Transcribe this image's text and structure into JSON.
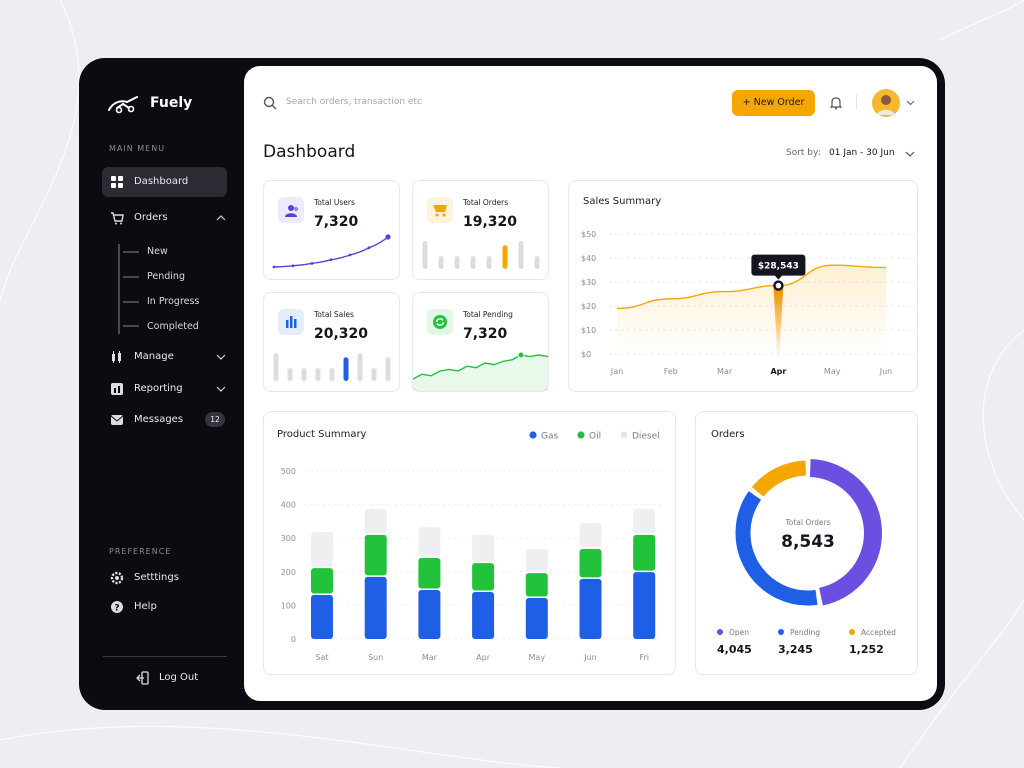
{
  "sidebar": {
    "brand": "Fuely",
    "main_menu": "MAIN MENU",
    "menu": [
      "Dashboard",
      "Orders",
      "Manage",
      "Reporting",
      "Messages"
    ],
    "orders_submenu": [
      "New",
      "Pending",
      "In Progress",
      "Completed"
    ],
    "messages_badge": 12,
    "preference": "PREFERENCE",
    "preference_menu": [
      "Setttings",
      "Help"
    ],
    "logout": "Log Out"
  },
  "header": {
    "search_placeholder": "Search orders, transaction etc",
    "new_order_button": "+ New Order"
  },
  "page": {
    "title": "Dashboard",
    "sort_label": "Sort by:",
    "sort_value": "01 Jan - 30 Jun"
  },
  "stat_cards": [
    {
      "label": "Total Users",
      "value": "7,320",
      "icon_color": "#5b3fd6",
      "icon_bg": "#ecebfb",
      "chart": {
        "type": "line",
        "color": "#5b3fd6",
        "values": [
          2,
          3,
          5,
          8,
          12,
          18,
          27
        ]
      }
    },
    {
      "label": "Total Orders",
      "value": "19,320",
      "icon_color": "#f5a700",
      "icon_bg": "#fdf3dd",
      "chart": {
        "type": "bar",
        "color": "#f5a700",
        "base_color": "#dcdde2",
        "highlight": 5,
        "values": [
          26,
          12,
          12,
          12,
          12,
          22,
          26,
          12
        ]
      }
    },
    {
      "label": "Total Sales",
      "value": "20,320",
      "icon_color": "#1f5fe6",
      "icon_bg": "#e5edfc",
      "chart": {
        "type": "bar",
        "color": "#1f5fe6",
        "base_color": "#dcdde2",
        "highlight": 5,
        "values": [
          26,
          12,
          12,
          12,
          12,
          22,
          26,
          12,
          22
        ]
      }
    },
    {
      "label": "Total Pending",
      "value": "7,320",
      "icon_color": "#22c33b",
      "icon_bg": "#e3f7e6",
      "chart": {
        "type": "area",
        "color": "#22c33b",
        "highlight": 12,
        "values": [
          2,
          5,
          4,
          7,
          8,
          7,
          10,
          9,
          12,
          11,
          13,
          14,
          17,
          16,
          17,
          16
        ]
      }
    }
  ],
  "sales_summary": {
    "type": "line",
    "title": "Sales Summary",
    "categories": [
      "Jan",
      "Feb",
      "Mar",
      "Apr",
      "May",
      "Jun"
    ],
    "values": [
      19,
      23,
      26,
      28.5,
      37,
      36
    ],
    "color": "#f5a700",
    "ylim": [
      0,
      50
    ],
    "yticks": [
      {
        "value": 0,
        "label": "$0"
      },
      {
        "value": 10,
        "label": "$10"
      },
      {
        "value": 20,
        "label": "$20"
      },
      {
        "value": 30,
        "label": "$30"
      },
      {
        "value": 40,
        "label": "$40"
      },
      {
        "value": 50,
        "label": "$50"
      }
    ],
    "grid": true,
    "tooltip": {
      "index": 3,
      "label": "$28,543"
    }
  },
  "product_summary": {
    "type": "stacked_bar",
    "title": "Product Summary",
    "categories": [
      "Sat",
      "Sun",
      "Mar",
      "Apr",
      "May",
      "Jun",
      "Fri"
    ],
    "series": [
      {
        "name": "Gas",
        "color": "#1f5fe6",
        "values": [
          131,
          185,
          146,
          140,
          122,
          179,
          199
        ]
      },
      {
        "name": "Oil",
        "color": "#22c33b",
        "values": [
          80,
          125,
          95,
          86,
          74,
          89,
          111
        ]
      },
      {
        "name": "Diesel",
        "color": "#efeff2",
        "values": [
          107,
          77,
          92,
          84,
          72,
          77,
          77
        ]
      }
    ],
    "ylim": [
      0,
      500
    ],
    "yticks": [
      0,
      100,
      200,
      300,
      400,
      500
    ],
    "grid": true
  },
  "orders": {
    "type": "donut",
    "title": "Orders",
    "center_label": "Total Orders",
    "center_value": "8,543",
    "categories": [
      "Open",
      "Pending",
      "Accepted"
    ],
    "values": [
      4045,
      3245,
      1252
    ],
    "value_labels": [
      "4,045",
      "3,245",
      "1,252"
    ],
    "colors": [
      "#6c4fe0",
      "#1f5fe6",
      "#f5a700"
    ]
  }
}
